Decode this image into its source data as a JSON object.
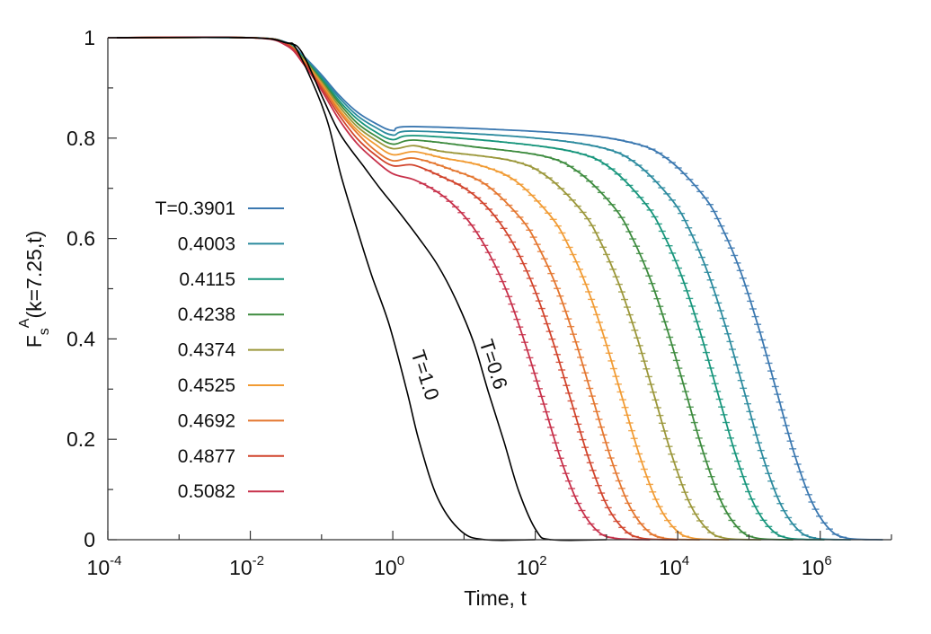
{
  "chart_data": {
    "type": "line",
    "xscale": "log",
    "xlim_log10": [
      -4,
      7
    ],
    "ylim": [
      0,
      1
    ],
    "xlabel": "Time, t",
    "ylabel": {
      "main": "F",
      "sub": "s",
      "sup": "A",
      "rest": "(k=7.25,t)"
    },
    "x_ticks": [
      {
        "base": "10",
        "exp": "-4",
        "log10": -4
      },
      {
        "base": "10",
        "exp": "-2",
        "log10": -2
      },
      {
        "base": "10",
        "exp": "0",
        "log10": 0
      },
      {
        "base": "10",
        "exp": "2",
        "log10": 2
      },
      {
        "base": "10",
        "exp": "4",
        "log10": 4
      },
      {
        "base": "10",
        "exp": "6",
        "log10": 6
      }
    ],
    "y_ticks": [
      {
        "label": "0",
        "value": 0
      },
      {
        "label": "0.2",
        "value": 0.2
      },
      {
        "label": "0.4",
        "value": 0.4
      },
      {
        "label": "0.6",
        "value": 0.6
      },
      {
        "label": "0.8",
        "value": 0.8
      },
      {
        "label": "1",
        "value": 1
      }
    ],
    "legend_position": "left-center",
    "series": [
      {
        "name": "T=0.3901",
        "label": "T=0.3901",
        "color": "#3b78b0",
        "error_bars": true,
        "log10_t": [
          -4,
          -2,
          -1.5,
          -1.25,
          -1,
          -0.75,
          -0.5,
          -0.25,
          0,
          0.3,
          2.38,
          3.38,
          3.88,
          4.38,
          4.63,
          4.88,
          5.13,
          5.38,
          5.63,
          5.88,
          6.13,
          6.38,
          6.88
        ],
        "F": [
          1,
          1,
          0.991,
          0.963,
          0.926,
          0.885,
          0.852,
          0.83,
          0.815,
          0.823,
          0.81,
          0.79,
          0.756,
          0.682,
          0.619,
          0.535,
          0.425,
          0.3,
          0.174,
          0.076,
          0.021,
          0.003,
          0
        ]
      },
      {
        "name": "T=0.4003",
        "label": "0.4003",
        "color": "#2b8a9e",
        "error_bars": true,
        "log10_t": [
          -4,
          -2,
          -1.5,
          -1.25,
          -1,
          -0.75,
          -0.5,
          -0.25,
          0,
          0.3,
          1.93,
          2.93,
          3.43,
          3.93,
          4.18,
          4.43,
          4.68,
          4.93,
          5.18,
          5.43,
          5.68,
          5.93,
          6.43
        ],
        "F": [
          1,
          1,
          0.99,
          0.961,
          0.922,
          0.88,
          0.845,
          0.822,
          0.806,
          0.814,
          0.801,
          0.781,
          0.748,
          0.675,
          0.613,
          0.529,
          0.421,
          0.297,
          0.172,
          0.075,
          0.021,
          0.003,
          0
        ]
      },
      {
        "name": "T=0.4115",
        "label": "0.4115",
        "color": "#16957b",
        "error_bars": true,
        "log10_t": [
          -4,
          -2,
          -1.5,
          -1.25,
          -1,
          -0.75,
          -0.5,
          -0.25,
          0,
          0.3,
          1.56,
          2.56,
          3.06,
          3.56,
          3.81,
          4.06,
          4.31,
          4.56,
          4.81,
          5.06,
          5.31,
          5.56,
          6.06
        ],
        "F": [
          1,
          1,
          0.99,
          0.959,
          0.919,
          0.874,
          0.838,
          0.813,
          0.797,
          0.805,
          0.792,
          0.772,
          0.74,
          0.667,
          0.606,
          0.523,
          0.416,
          0.293,
          0.171,
          0.074,
          0.021,
          0.003,
          0
        ]
      },
      {
        "name": "T=0.4238",
        "label": "0.4238",
        "color": "#3d8b3e",
        "error_bars": true,
        "log10_t": [
          -4,
          -2,
          -1.5,
          -1.25,
          -1,
          -0.75,
          -0.5,
          -0.25,
          0,
          0.3,
          1.12,
          2.12,
          2.62,
          3.12,
          3.37,
          3.62,
          3.87,
          4.12,
          4.37,
          4.62,
          4.87,
          5.12,
          5.62
        ],
        "F": [
          1,
          1,
          0.989,
          0.958,
          0.915,
          0.869,
          0.83,
          0.805,
          0.788,
          0.796,
          0.783,
          0.764,
          0.731,
          0.66,
          0.599,
          0.517,
          0.411,
          0.29,
          0.169,
          0.073,
          0.02,
          0.003,
          0
        ]
      },
      {
        "name": "T=0.4374",
        "label": "0.4374",
        "color": "#9b973a",
        "error_bars": true,
        "log10_t": [
          -4,
          -2,
          -1.5,
          -1.25,
          -1,
          -0.75,
          -0.5,
          -0.25,
          0,
          0.3,
          0.67,
          1.67,
          2.17,
          2.67,
          2.92,
          3.17,
          3.42,
          3.67,
          3.92,
          4.17,
          4.42,
          4.67,
          5.17
        ],
        "F": [
          1,
          1,
          0.989,
          0.956,
          0.912,
          0.863,
          0.823,
          0.797,
          0.779,
          0.785,
          0.774,
          0.755,
          0.723,
          0.652,
          0.592,
          0.511,
          0.407,
          0.287,
          0.167,
          0.072,
          0.02,
          0.003,
          0
        ]
      },
      {
        "name": "T=0.4525",
        "label": "0.4525",
        "color": "#f19b33",
        "error_bars": true,
        "log10_t": [
          -4,
          -2,
          -1.5,
          -1.25,
          -1,
          -0.75,
          -0.5,
          -0.25,
          0,
          0.3,
          0.72,
          1.22,
          1.72,
          2.22,
          2.47,
          2.72,
          2.97,
          3.22,
          3.47,
          3.72,
          3.97,
          4.22,
          4.72
        ],
        "F": [
          1,
          1,
          0.989,
          0.954,
          0.908,
          0.857,
          0.816,
          0.788,
          0.767,
          0.773,
          0.76,
          0.746,
          0.715,
          0.644,
          0.585,
          0.505,
          0.402,
          0.283,
          0.165,
          0.072,
          0.02,
          0.003,
          0
        ]
      },
      {
        "name": "T=0.4692",
        "label": "0.4692",
        "color": "#e4762f",
        "error_bars": true,
        "log10_t": [
          -4,
          -2,
          -1.5,
          -1.25,
          -1,
          -0.75,
          -0.5,
          -0.25,
          0,
          0.3,
          0.81,
          1.31,
          1.81,
          2.06,
          2.31,
          2.56,
          2.81,
          3.06,
          3.31,
          3.56,
          3.81,
          4.31
        ],
        "F": [
          1,
          1,
          0.988,
          0.952,
          0.905,
          0.852,
          0.81,
          0.776,
          0.755,
          0.76,
          0.738,
          0.707,
          0.638,
          0.579,
          0.5,
          0.398,
          0.28,
          0.163,
          0.071,
          0.02,
          0.003,
          0
        ]
      },
      {
        "name": "T=0.4877",
        "label": "0.4877",
        "color": "#d1432b",
        "error_bars": true,
        "log10_t": [
          -4,
          -2,
          -1.5,
          -1.25,
          -1,
          -0.75,
          -0.5,
          -0.25,
          0,
          0.3,
          0.75,
          1.0,
          1.25,
          1.5,
          1.75,
          2.0,
          2.25,
          2.5,
          2.75,
          3.0,
          3.25,
          3.5,
          4.0
        ],
        "F": [
          1,
          1,
          0.988,
          0.951,
          0.9,
          0.845,
          0.799,
          0.767,
          0.745,
          0.746,
          0.719,
          0.701,
          0.673,
          0.632,
          0.574,
          0.495,
          0.394,
          0.278,
          0.162,
          0.07,
          0.02,
          0.003,
          0
        ]
      },
      {
        "name": "T=0.5082",
        "label": "0.5082",
        "color": "#c7304a",
        "error_bars": true,
        "log10_t": [
          -4,
          -2,
          -1.5,
          -1.25,
          -1,
          -0.75,
          -0.5,
          -0.25,
          0,
          0.3,
          0.61,
          0.86,
          1.11,
          1.36,
          1.61,
          1.86,
          2.11,
          2.36,
          2.61,
          2.86,
          3.11,
          3.61
        ],
        "F": [
          1,
          1,
          0.985,
          0.947,
          0.895,
          0.836,
          0.789,
          0.756,
          0.729,
          0.717,
          0.694,
          0.666,
          0.626,
          0.568,
          0.491,
          0.39,
          0.275,
          0.16,
          0.07,
          0.019,
          0.003,
          0
        ]
      },
      {
        "name": "T=1.0",
        "label": "T=1.0",
        "color": "#000000",
        "error_bars": false,
        "annotation": true,
        "log10_t": [
          -4,
          -2,
          -1.5,
          -1.36,
          -1.07,
          -0.9,
          -0.73,
          -0.52,
          -0.3,
          -0.05,
          0.2,
          0.37,
          0.63,
          0.96,
          1.3,
          2.0
        ],
        "F": [
          1,
          1,
          0.99,
          0.979,
          0.892,
          0.825,
          0.727,
          0.627,
          0.528,
          0.428,
          0.295,
          0.196,
          0.083,
          0.017,
          0,
          0
        ]
      },
      {
        "name": "T=0.6",
        "label": "T=0.6",
        "color": "#000000",
        "error_bars": false,
        "annotation": true,
        "log10_t": [
          -4,
          -2,
          -1.5,
          -1.28,
          -0.98,
          -0.73,
          -0.39,
          -0.18,
          0.08,
          0.37,
          0.63,
          0.88,
          1.13,
          1.34,
          1.56,
          1.77,
          2.02,
          2.23,
          3.0
        ],
        "F": [
          1,
          1,
          0.99,
          0.972,
          0.879,
          0.806,
          0.74,
          0.7,
          0.654,
          0.6,
          0.547,
          0.48,
          0.395,
          0.295,
          0.196,
          0.096,
          0.017,
          0,
          0
        ]
      }
    ]
  }
}
